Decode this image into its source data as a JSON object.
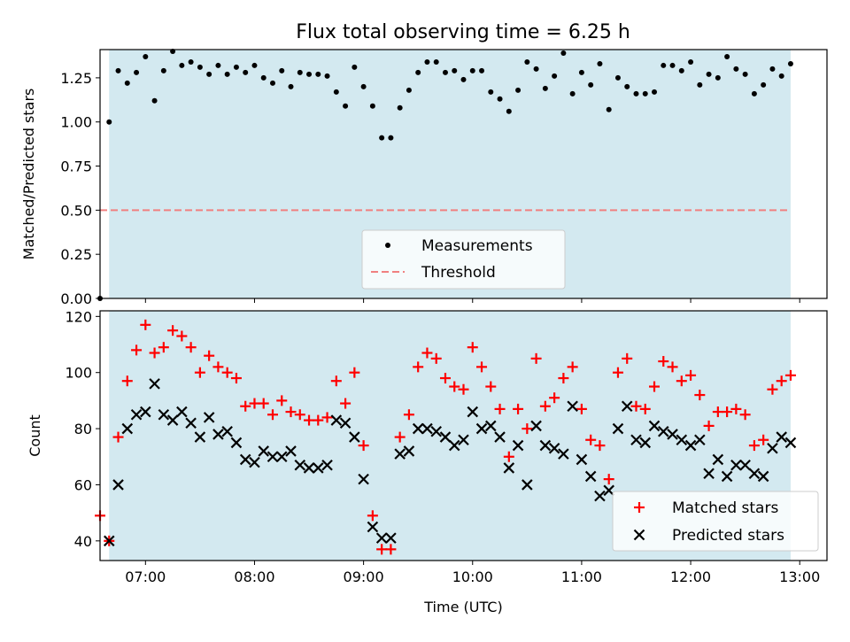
{
  "chart_data": [
    {
      "type": "scatter",
      "title": "Flux total observing time = 6.25 h",
      "xlabel": "",
      "ylabel": "Matched/Predicted stars",
      "xlim": [
        "06:35",
        "13:15"
      ],
      "ylim": [
        0.0,
        1.41
      ],
      "y_ticks": [
        "0.00",
        "0.25",
        "0.50",
        "0.75",
        "1.00",
        "1.25"
      ],
      "observing_window": {
        "start": "06:40",
        "end": "12:55",
        "color": "#d3e9f0"
      },
      "legend_position": "lower-center",
      "series": [
        {
          "name": "Measurements",
          "marker": "dot",
          "color": "#000000",
          "x": [
            "06:35",
            "06:40",
            "06:45",
            "06:50",
            "06:55",
            "07:00",
            "07:05",
            "07:10",
            "07:15",
            "07:20",
            "07:25",
            "07:30",
            "07:35",
            "07:40",
            "07:45",
            "07:50",
            "07:55",
            "08:00",
            "08:05",
            "08:10",
            "08:15",
            "08:20",
            "08:25",
            "08:30",
            "08:35",
            "08:40",
            "08:45",
            "08:50",
            "08:55",
            "09:00",
            "09:05",
            "09:10",
            "09:15",
            "09:20",
            "09:25",
            "09:30",
            "09:35",
            "09:40",
            "09:45",
            "09:50",
            "09:55",
            "10:00",
            "10:05",
            "10:10",
            "10:15",
            "10:20",
            "10:25",
            "10:30",
            "10:35",
            "10:40",
            "10:45",
            "10:50",
            "10:55",
            "11:00",
            "11:05",
            "11:10",
            "11:15",
            "11:20",
            "11:25",
            "11:30",
            "11:35",
            "11:40",
            "11:45",
            "11:50",
            "11:55",
            "12:00",
            "12:05",
            "12:10",
            "12:15",
            "12:20",
            "12:25",
            "12:30",
            "12:35",
            "12:40",
            "12:45",
            "12:50",
            "12:55"
          ],
          "y": [
            0.0,
            1.0,
            1.29,
            1.22,
            1.28,
            1.37,
            1.12,
            1.29,
            1.4,
            1.32,
            1.34,
            1.31,
            1.27,
            1.32,
            1.27,
            1.31,
            1.28,
            1.32,
            1.25,
            1.22,
            1.29,
            1.2,
            1.28,
            1.27,
            1.27,
            1.26,
            1.17,
            1.09,
            1.31,
            1.2,
            1.09,
            0.91,
            0.91,
            1.08,
            1.18,
            1.28,
            1.34,
            1.34,
            1.28,
            1.29,
            1.24,
            1.29,
            1.29,
            1.17,
            1.13,
            1.06,
            1.18,
            1.34,
            1.3,
            1.19,
            1.26,
            1.39,
            1.16,
            1.28,
            1.21,
            1.33,
            1.07,
            1.25,
            1.2,
            1.16,
            1.16,
            1.17,
            1.32,
            1.32,
            1.29,
            1.34,
            1.21,
            1.27,
            1.25,
            1.37,
            1.3,
            1.27,
            1.16,
            1.21,
            1.3,
            1.26,
            1.33
          ]
        },
        {
          "name": "Threshold",
          "marker": "dashed-line",
          "color": "#f08080",
          "x": [
            "06:35",
            "12:55"
          ],
          "y": [
            0.5,
            0.5
          ]
        }
      ]
    },
    {
      "type": "scatter",
      "title": "",
      "xlabel": "Time (UTC)",
      "ylabel": "Count",
      "xlim": [
        "06:35",
        "13:15"
      ],
      "ylim": [
        33,
        122
      ],
      "y_ticks": [
        "40",
        "60",
        "80",
        "100",
        "120"
      ],
      "x_ticks": [
        "07:00",
        "08:00",
        "09:00",
        "10:00",
        "11:00",
        "12:00",
        "13:00"
      ],
      "observing_window": {
        "start": "06:40",
        "end": "12:55",
        "color": "#d3e9f0"
      },
      "legend_position": "lower-right",
      "series": [
        {
          "name": "Matched stars",
          "marker": "plus",
          "color": "#ff0000",
          "x": [
            "06:35",
            "06:40",
            "06:45",
            "06:50",
            "06:55",
            "07:00",
            "07:05",
            "07:10",
            "07:15",
            "07:20",
            "07:25",
            "07:30",
            "07:35",
            "07:40",
            "07:45",
            "07:50",
            "07:55",
            "08:00",
            "08:05",
            "08:10",
            "08:15",
            "08:20",
            "08:25",
            "08:30",
            "08:35",
            "08:40",
            "08:45",
            "08:50",
            "08:55",
            "09:00",
            "09:05",
            "09:10",
            "09:15",
            "09:20",
            "09:25",
            "09:30",
            "09:35",
            "09:40",
            "09:45",
            "09:50",
            "09:55",
            "10:00",
            "10:05",
            "10:10",
            "10:15",
            "10:20",
            "10:25",
            "10:30",
            "10:35",
            "10:40",
            "10:45",
            "10:50",
            "10:55",
            "11:00",
            "11:05",
            "11:10",
            "11:15",
            "11:20",
            "11:25",
            "11:30",
            "11:35",
            "11:40",
            "11:45",
            "11:50",
            "11:55",
            "12:00",
            "12:05",
            "12:10",
            "12:15",
            "12:20",
            "12:25",
            "12:30",
            "12:35",
            "12:40",
            "12:45",
            "12:50",
            "12:55"
          ],
          "y": [
            49,
            40,
            77,
            97,
            108,
            117,
            107,
            109,
            115,
            113,
            109,
            100,
            106,
            102,
            100,
            98,
            88,
            89,
            89,
            85,
            90,
            86,
            85,
            83,
            83,
            84,
            97,
            89,
            100,
            74,
            49,
            37,
            37,
            77,
            85,
            102,
            107,
            105,
            98,
            95,
            94,
            109,
            102,
            95,
            87,
            70,
            87,
            80,
            105,
            88,
            91,
            98,
            102,
            87,
            76,
            74,
            62,
            100,
            105,
            88,
            87,
            95,
            104,
            102,
            97,
            99,
            92,
            81,
            86,
            86,
            87,
            85,
            74,
            76,
            94,
            97,
            99
          ]
        },
        {
          "name": "Predicted stars",
          "marker": "x",
          "color": "#000000",
          "x": [
            "06:40",
            "06:45",
            "06:50",
            "06:55",
            "07:00",
            "07:05",
            "07:10",
            "07:15",
            "07:20",
            "07:25",
            "07:30",
            "07:35",
            "07:40",
            "07:45",
            "07:50",
            "07:55",
            "08:00",
            "08:05",
            "08:10",
            "08:15",
            "08:20",
            "08:25",
            "08:30",
            "08:35",
            "08:40",
            "08:45",
            "08:50",
            "08:55",
            "09:00",
            "09:05",
            "09:10",
            "09:15",
            "09:20",
            "09:25",
            "09:30",
            "09:35",
            "09:40",
            "09:45",
            "09:50",
            "09:55",
            "10:00",
            "10:05",
            "10:10",
            "10:15",
            "10:20",
            "10:25",
            "10:30",
            "10:35",
            "10:40",
            "10:45",
            "10:50",
            "10:55",
            "11:00",
            "11:05",
            "11:10",
            "11:15",
            "11:20",
            "11:25",
            "11:30",
            "11:35",
            "11:40",
            "11:45",
            "11:50",
            "11:55",
            "12:00",
            "12:05",
            "12:10",
            "12:15",
            "12:20",
            "12:25",
            "12:30",
            "12:35",
            "12:40",
            "12:45",
            "12:50",
            "12:55"
          ],
          "y": [
            40,
            60,
            80,
            85,
            86,
            96,
            85,
            83,
            86,
            82,
            77,
            84,
            78,
            79,
            75,
            69,
            68,
            72,
            70,
            70,
            72,
            67,
            66,
            66,
            67,
            83,
            82,
            77,
            62,
            45,
            41,
            41,
            71,
            72,
            80,
            80,
            79,
            77,
            74,
            76,
            86,
            80,
            81,
            77,
            66,
            74,
            60,
            81,
            74,
            73,
            71,
            88,
            69,
            63,
            56,
            58,
            80,
            88,
            76,
            75,
            81,
            79,
            78,
            76,
            74,
            76,
            64,
            69,
            63,
            67,
            67,
            64,
            63,
            73,
            77,
            75
          ]
        }
      ]
    }
  ]
}
